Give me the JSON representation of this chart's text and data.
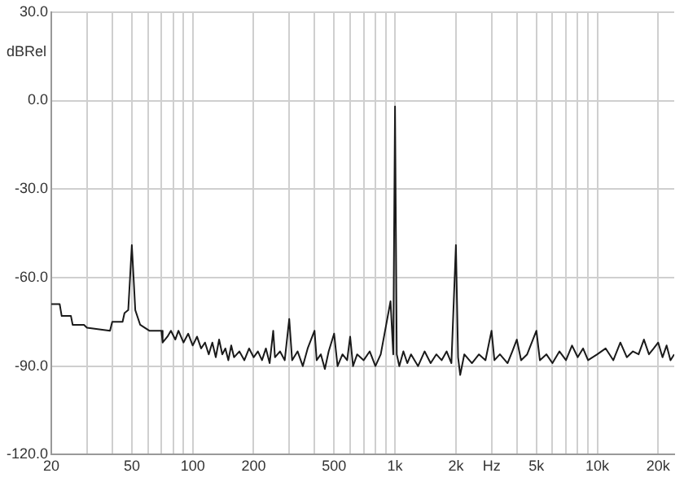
{
  "chart_data": {
    "type": "line",
    "xlabel": "Hz",
    "ylabel": "dBRel",
    "log": "x",
    "grid": true,
    "legend": false,
    "marker": "none",
    "line_style": "solid",
    "xlim": [
      20,
      24000
    ],
    "ylim": [
      -120,
      30
    ],
    "xticks": [
      20,
      {
        "value": 30,
        "label": null
      },
      {
        "value": 40,
        "label": null
      },
      50,
      {
        "value": 60,
        "label": null
      },
      {
        "value": 70,
        "label": null
      },
      {
        "value": 80,
        "label": null
      },
      {
        "value": 90,
        "label": null
      },
      100,
      200,
      {
        "value": 300,
        "label": null
      },
      {
        "value": 400,
        "label": null
      },
      500,
      {
        "value": 600,
        "label": null
      },
      {
        "value": 700,
        "label": null
      },
      {
        "value": 800,
        "label": null
      },
      {
        "value": 900,
        "label": null
      },
      {
        "value": 1000,
        "label": "1k"
      },
      {
        "value": 2000,
        "label": "2k"
      },
      {
        "value": 3000,
        "label": null
      },
      {
        "value": 4000,
        "label": null
      },
      {
        "value": 5000,
        "label": "5k"
      },
      {
        "value": 6000,
        "label": null
      },
      {
        "value": 7000,
        "label": null
      },
      {
        "value": 8000,
        "label": null
      },
      {
        "value": 9000,
        "label": null
      },
      {
        "value": 10000,
        "label": "10k"
      },
      {
        "value": 20000,
        "label": "20k"
      }
    ],
    "yticks": [
      {
        "value": -120,
        "label": "-120.0"
      },
      {
        "value": -90,
        "label": "-90.0"
      },
      {
        "value": -60,
        "label": "-60.0"
      },
      {
        "value": -30,
        "label": "-30.0"
      },
      {
        "value": 0,
        "label": "0.0"
      },
      {
        "value": 30,
        "label": "30.0"
      }
    ],
    "series": [
      {
        "color": "#1a1a1a",
        "x": [
          20,
          22,
          22.5,
          25,
          25.5,
          29,
          30,
          39,
          40,
          45,
          46,
          48,
          49,
          50,
          51,
          52,
          55,
          58,
          61,
          70,
          71,
          75,
          78,
          82,
          85,
          90,
          95,
          100,
          105,
          110,
          115,
          120,
          125,
          130,
          135,
          140,
          145,
          150,
          155,
          160,
          170,
          180,
          190,
          200,
          210,
          220,
          230,
          240,
          250,
          255,
          270,
          285,
          300,
          310,
          330,
          350,
          370,
          400,
          410,
          430,
          450,
          470,
          500,
          520,
          550,
          580,
          600,
          620,
          650,
          700,
          750,
          800,
          850,
          950,
          980,
          1000,
          1020,
          1050,
          1100,
          1150,
          1200,
          1300,
          1400,
          1500,
          1600,
          1700,
          1800,
          1900,
          2000,
          2050,
          2100,
          2200,
          2400,
          2600,
          2800,
          3000,
          3100,
          3300,
          3600,
          3800,
          4000,
          4200,
          4500,
          5000,
          5200,
          5600,
          6000,
          6500,
          7000,
          7500,
          8000,
          8500,
          9000,
          10000,
          11000,
          12000,
          13000,
          14000,
          15000,
          16000,
          17000,
          18000,
          19000,
          20000,
          21000,
          22000,
          23000,
          24000
        ],
        "values": [
          -69,
          -69,
          -73,
          -73,
          -76,
          -76,
          -77,
          -78,
          -75,
          -75,
          -72,
          -71,
          -60,
          -49,
          -60,
          -71,
          -76,
          -77,
          -78,
          -78,
          -82,
          -80,
          -78,
          -81,
          -78,
          -82,
          -79,
          -83,
          -80,
          -84,
          -82,
          -86,
          -82,
          -87,
          -81,
          -86,
          -84,
          -88,
          -83,
          -87,
          -85,
          -88,
          -84,
          -87,
          -85,
          -88,
          -84,
          -89,
          -78,
          -87,
          -85,
          -88,
          -74,
          -88,
          -85,
          -90,
          -84,
          -78,
          -88,
          -86,
          -91,
          -85,
          -79,
          -90,
          -86,
          -88,
          -80,
          -90,
          -86,
          -88,
          -85,
          -90,
          -86,
          -68,
          -86,
          -2,
          -86,
          -90,
          -85,
          -89,
          -86,
          -90,
          -85,
          -89,
          -86,
          -88,
          -85,
          -89,
          -49,
          -87,
          -93,
          -86,
          -89,
          -86,
          -88,
          -78,
          -88,
          -86,
          -89,
          -85,
          -81,
          -88,
          -86,
          -78,
          -88,
          -86,
          -89,
          -85,
          -88,
          -83,
          -87,
          -84,
          -88,
          -86,
          -84,
          -88,
          -82,
          -87,
          -85,
          -86,
          -81,
          -86,
          -84,
          -82,
          -87,
          -83,
          -88,
          -86
        ]
      }
    ]
  }
}
